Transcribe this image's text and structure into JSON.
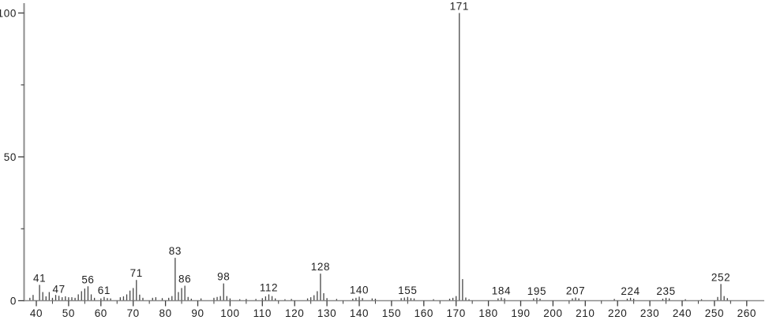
{
  "chart_data": {
    "type": "bar",
    "subtype": "mass-spectrum",
    "title": "",
    "xlabel": "",
    "ylabel": "",
    "x_axis": {
      "min": 40,
      "max": 260,
      "major_tick_step": 10,
      "minor_tick_step": 5,
      "major_tick_labels": [
        "40",
        "50",
        "60",
        "70",
        "80",
        "90",
        "100",
        "110",
        "120",
        "130",
        "140",
        "150",
        "160",
        "170",
        "180",
        "190",
        "200",
        "210",
        "220",
        "230",
        "240",
        "250",
        "260"
      ]
    },
    "y_axis": {
      "min": 0,
      "max": 100,
      "major_ticks": [
        0,
        50,
        100
      ],
      "major_tick_labels": [
        "0",
        "50",
        "100"
      ],
      "minor_ticks": [
        25,
        75
      ]
    },
    "grid": "off",
    "legend": "none",
    "peaks": [
      [
        38,
        1.0
      ],
      [
        39,
        2.0
      ],
      [
        41,
        5.5
      ],
      [
        42,
        3.0
      ],
      [
        43,
        1.5
      ],
      [
        44,
        3.0
      ],
      [
        45,
        1.0
      ],
      [
        46,
        2.0
      ],
      [
        47,
        1.7
      ],
      [
        48,
        1.2
      ],
      [
        49,
        1.5
      ],
      [
        50,
        1.2
      ],
      [
        51,
        1.2
      ],
      [
        52,
        1.0
      ],
      [
        53,
        2.2
      ],
      [
        54,
        3.3
      ],
      [
        55,
        4.2
      ],
      [
        56,
        5.0
      ],
      [
        57,
        2.2
      ],
      [
        58,
        1.0
      ],
      [
        60,
        0.8
      ],
      [
        61,
        1.3
      ],
      [
        62,
        0.9
      ],
      [
        63,
        0.8
      ],
      [
        66,
        1.2
      ],
      [
        67,
        1.5
      ],
      [
        68,
        2.2
      ],
      [
        69,
        3.5
      ],
      [
        70,
        4.4
      ],
      [
        71,
        7.2
      ],
      [
        72,
        2.1
      ],
      [
        73,
        1.0
      ],
      [
        76,
        1.0
      ],
      [
        77,
        1.2
      ],
      [
        79,
        0.9
      ],
      [
        81,
        1.0
      ],
      [
        82,
        1.6
      ],
      [
        83,
        14.9
      ],
      [
        84,
        3.0
      ],
      [
        85,
        4.4
      ],
      [
        86,
        5.2
      ],
      [
        87,
        1.3
      ],
      [
        88,
        0.7
      ],
      [
        91,
        0.8
      ],
      [
        95,
        1.0
      ],
      [
        96,
        1.3
      ],
      [
        97,
        1.6
      ],
      [
        98,
        6.0
      ],
      [
        99,
        1.6
      ],
      [
        100,
        0.8
      ],
      [
        103,
        0.5
      ],
      [
        105,
        0.6
      ],
      [
        108,
        0.6
      ],
      [
        110,
        0.9
      ],
      [
        111,
        1.5
      ],
      [
        112,
        2.2
      ],
      [
        113,
        1.6
      ],
      [
        114,
        0.8
      ],
      [
        117,
        0.5
      ],
      [
        119,
        0.6
      ],
      [
        124,
        0.8
      ],
      [
        125,
        1.2
      ],
      [
        126,
        1.9
      ],
      [
        127,
        3.3
      ],
      [
        128,
        9.4
      ],
      [
        129,
        2.6
      ],
      [
        130,
        0.9
      ],
      [
        133,
        0.6
      ],
      [
        138,
        0.7
      ],
      [
        139,
        1.0
      ],
      [
        140,
        1.4
      ],
      [
        141,
        0.9
      ],
      [
        144,
        0.8
      ],
      [
        145,
        0.7
      ],
      [
        153,
        0.9
      ],
      [
        154,
        1.1
      ],
      [
        155,
        1.3
      ],
      [
        156,
        0.9
      ],
      [
        157,
        0.8
      ],
      [
        163,
        0.5
      ],
      [
        168,
        0.7
      ],
      [
        169,
        1.0
      ],
      [
        170,
        1.6
      ],
      [
        171,
        100
      ],
      [
        172,
        7.5
      ],
      [
        173,
        1.1
      ],
      [
        174,
        0.5
      ],
      [
        183,
        0.8
      ],
      [
        184,
        1.1
      ],
      [
        185,
        0.8
      ],
      [
        194,
        0.8
      ],
      [
        195,
        1.0
      ],
      [
        196,
        0.7
      ],
      [
        206,
        0.8
      ],
      [
        207,
        1.1
      ],
      [
        208,
        0.8
      ],
      [
        219,
        0.6
      ],
      [
        223,
        0.7
      ],
      [
        224,
        1.0
      ],
      [
        225,
        0.7
      ],
      [
        234,
        0.7
      ],
      [
        235,
        1.0
      ],
      [
        236,
        0.8
      ],
      [
        241,
        0.5
      ],
      [
        246,
        0.5
      ],
      [
        251,
        1.3
      ],
      [
        252,
        5.8
      ],
      [
        253,
        1.6
      ],
      [
        254,
        0.9
      ]
    ],
    "labeled_peaks": [
      "41",
      "47",
      "56",
      "61",
      "71",
      "83",
      "86",
      "98",
      "112",
      "128",
      "140",
      "155",
      "171",
      "184",
      "195",
      "207",
      "224",
      "235",
      "252"
    ]
  },
  "colors": {
    "background": "#ffffff",
    "axis_line": "#8c8c8c",
    "tick": "#3c3c3c",
    "bar": "#474747",
    "text": "#1f1f1f"
  }
}
